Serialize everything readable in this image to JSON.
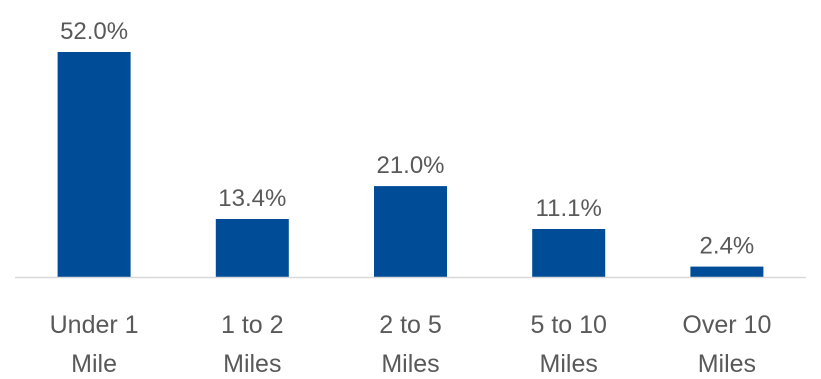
{
  "chart_data": {
    "type": "bar",
    "categories": [
      [
        "Under 1",
        "Mile"
      ],
      [
        "1 to 2",
        "Miles"
      ],
      [
        "2 to 5",
        "Miles"
      ],
      [
        "5 to 10",
        "Miles"
      ],
      [
        "Over 10",
        "Miles"
      ]
    ],
    "values": [
      52.0,
      13.4,
      21.0,
      11.1,
      2.4
    ],
    "value_labels": [
      "52.0%",
      "13.4%",
      "21.0%",
      "11.1%",
      "2.4%"
    ],
    "bar_color": "#004c97",
    "axis_color": "#d9d9d9",
    "text_color": "#595959",
    "ylim": [
      0,
      52.0
    ],
    "grid": false,
    "legend": "none"
  }
}
